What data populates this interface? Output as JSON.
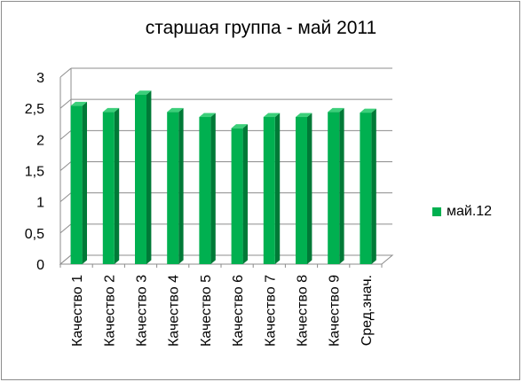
{
  "chart_data": {
    "type": "bar",
    "title": "старшая группа - май 2011",
    "xlabel": "",
    "ylabel": "",
    "categories": [
      "Качество 1",
      "Качество 2",
      "Качество 3",
      "Качество 4",
      "Качество 5",
      "Качество 6",
      "Качество 7",
      "Качество 8",
      "Качество 9",
      "Сред.знач."
    ],
    "series": [
      {
        "name": "май.12",
        "values": [
          2.54,
          2.44,
          2.72,
          2.44,
          2.36,
          2.18,
          2.36,
          2.36,
          2.44,
          2.43
        ]
      }
    ],
    "ylim": [
      0,
      3
    ],
    "y_ticks": [
      "0",
      "0,5",
      "1",
      "1,5",
      "2",
      "2,5",
      "3"
    ],
    "grid": true,
    "legend_position": "right",
    "colors": {
      "bar_front": "#00b050",
      "bar_side": "#007a37",
      "bar_top": "#3ccf7a",
      "grid": "#8c8c8c"
    }
  }
}
